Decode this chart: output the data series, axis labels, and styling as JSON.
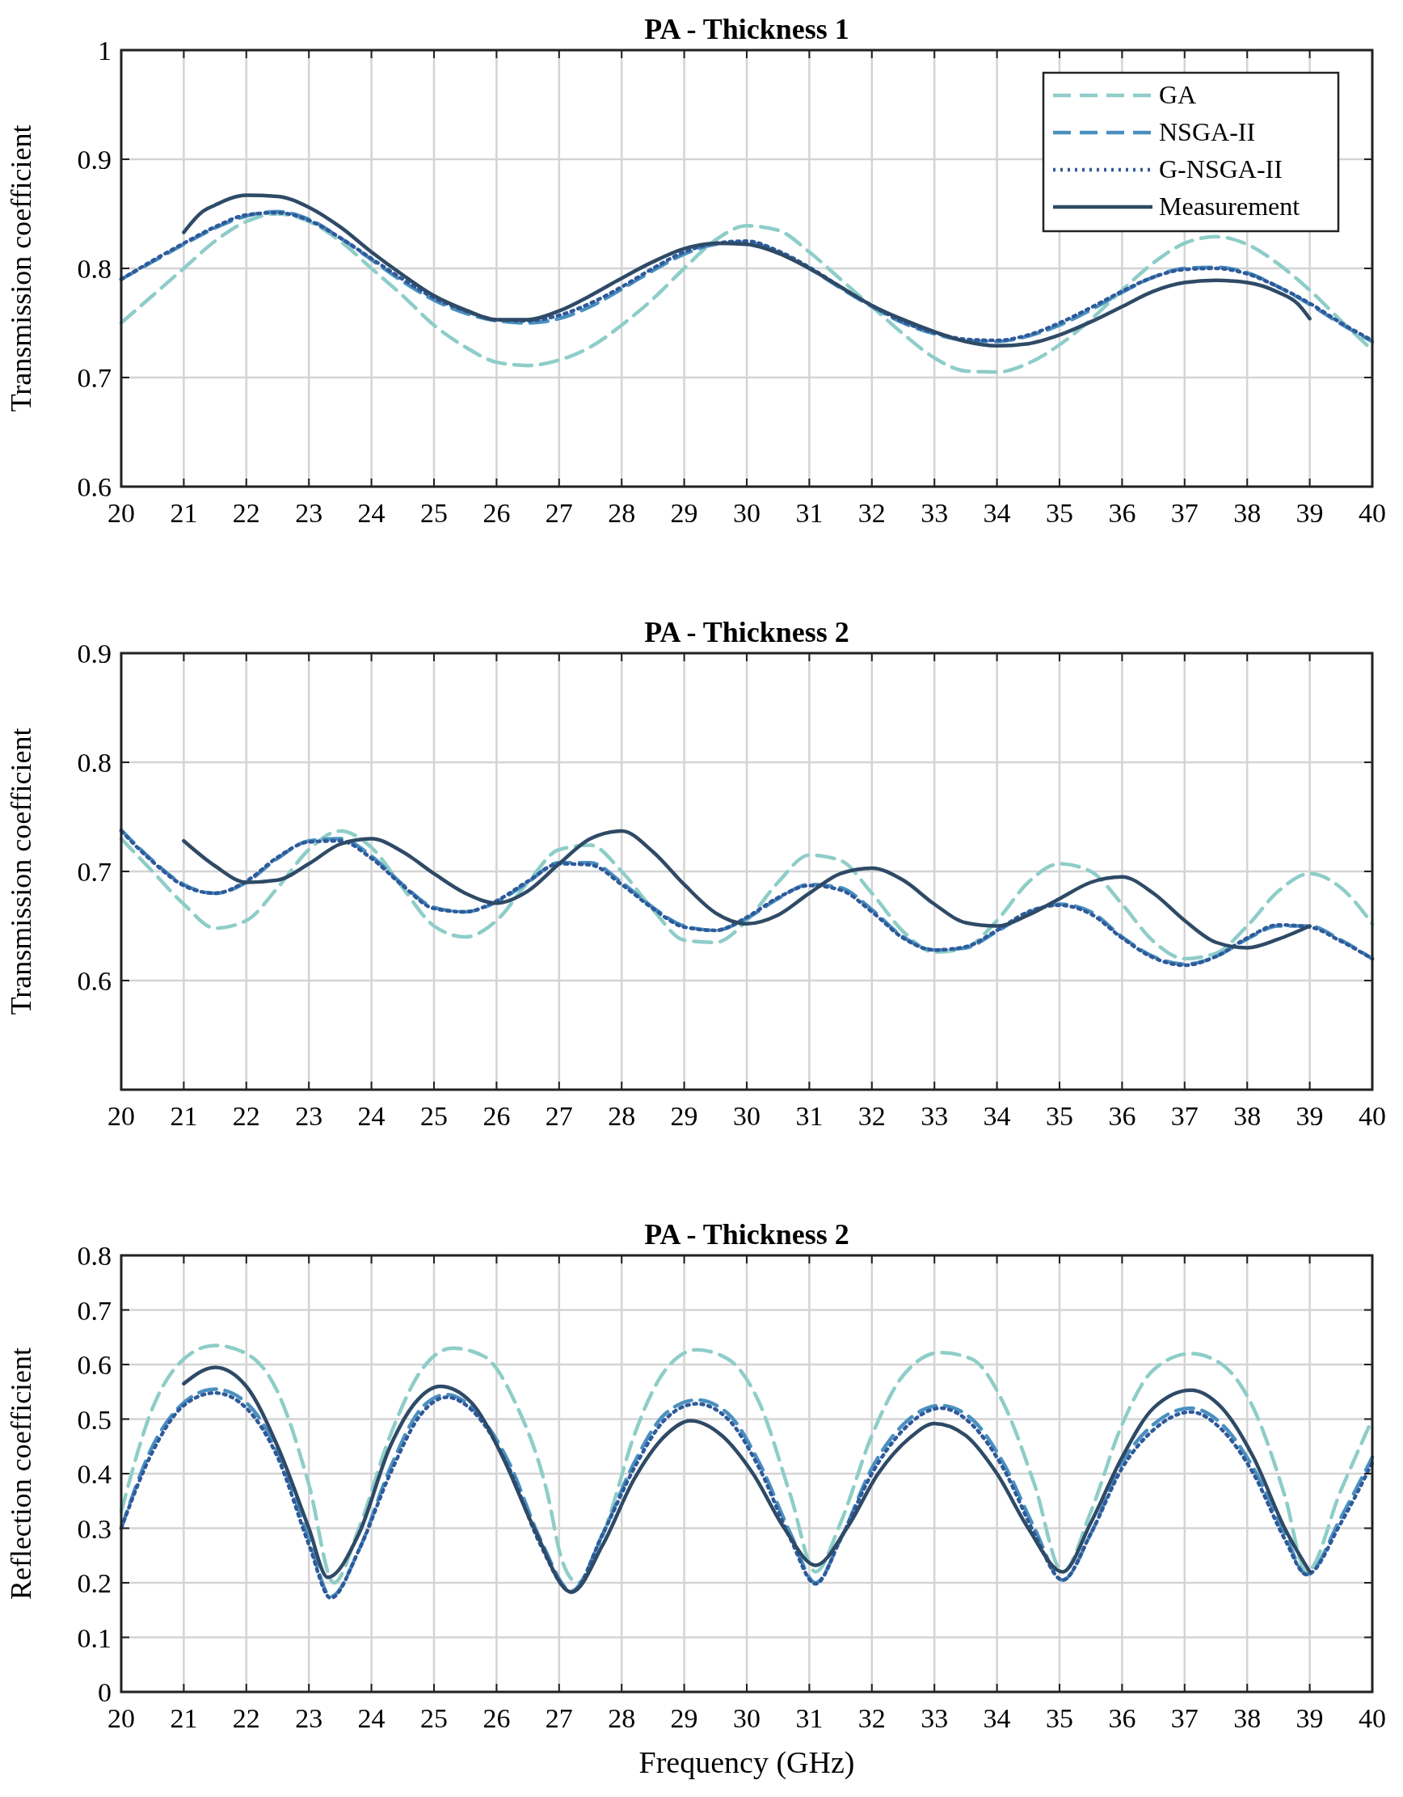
{
  "chart_data": [
    {
      "type": "line",
      "title": "PA - Thickness 1",
      "ylabel": "Transmission coefficient",
      "xlim": [
        20,
        40
      ],
      "xticks": [
        20,
        21,
        22,
        23,
        24,
        25,
        26,
        27,
        28,
        29,
        30,
        31,
        32,
        33,
        34,
        35,
        36,
        37,
        38,
        39,
        40
      ],
      "ylim": [
        0.6,
        1
      ],
      "yticks": [
        0.6,
        0.7,
        0.8,
        0.9,
        1
      ],
      "grid": true,
      "legend": "top right",
      "x": [
        20,
        20.5,
        21,
        21.5,
        22,
        22.5,
        23,
        23.5,
        24,
        24.5,
        25,
        25.5,
        26,
        26.5,
        27,
        27.5,
        28,
        28.5,
        29,
        29.5,
        30,
        30.5,
        31,
        31.5,
        32,
        32.5,
        33,
        33.5,
        34,
        34.5,
        35,
        35.5,
        36,
        36.5,
        37,
        37.5,
        38,
        38.5,
        39,
        39.5,
        40
      ],
      "series": [
        {
          "name": "GA",
          "color": "#8ecdc8",
          "line_style": "dashed",
          "values": [
            0.75,
            0.775,
            0.8,
            0.825,
            0.843,
            0.85,
            0.843,
            0.825,
            0.8,
            0.775,
            0.748,
            0.728,
            0.714,
            0.711,
            0.716,
            0.728,
            0.748,
            0.772,
            0.8,
            0.826,
            0.839,
            0.835,
            0.815,
            0.79,
            0.765,
            0.74,
            0.718,
            0.706,
            0.705,
            0.713,
            0.73,
            0.753,
            0.78,
            0.805,
            0.823,
            0.829,
            0.822,
            0.804,
            0.78,
            0.752,
            0.725
          ]
        },
        {
          "name": "NSGA-II",
          "color": "#4a90c0",
          "line_style": "dashed",
          "values": [
            0.79,
            0.806,
            0.822,
            0.837,
            0.848,
            0.852,
            0.845,
            0.828,
            0.808,
            0.788,
            0.771,
            0.759,
            0.752,
            0.75,
            0.754,
            0.765,
            0.781,
            0.798,
            0.813,
            0.822,
            0.824,
            0.815,
            0.8,
            0.782,
            0.765,
            0.75,
            0.74,
            0.734,
            0.733,
            0.738,
            0.748,
            0.762,
            0.778,
            0.792,
            0.8,
            0.801,
            0.796,
            0.783,
            0.767,
            0.749,
            0.733
          ]
        },
        {
          "name": "G-NSGA-II",
          "color": "#2f5a9a",
          "line_style": "dotted",
          "values": [
            0.79,
            0.807,
            0.823,
            0.838,
            0.849,
            0.851,
            0.844,
            0.828,
            0.809,
            0.79,
            0.773,
            0.761,
            0.753,
            0.752,
            0.757,
            0.768,
            0.783,
            0.8,
            0.815,
            0.823,
            0.825,
            0.816,
            0.801,
            0.783,
            0.766,
            0.751,
            0.741,
            0.735,
            0.734,
            0.739,
            0.75,
            0.764,
            0.779,
            0.792,
            0.799,
            0.8,
            0.795,
            0.783,
            0.768,
            0.75,
            0.734
          ]
        },
        {
          "name": "Measurement",
          "color": "#2e4a66",
          "line_style": "solid",
          "x": [
            21,
            21.3,
            21.5,
            22,
            22.5,
            23,
            23.5,
            24,
            24.5,
            25,
            25.5,
            26,
            26.5,
            27,
            27.5,
            28,
            28.5,
            29,
            29.5,
            30,
            30.5,
            31,
            31.5,
            32,
            32.5,
            33,
            33.5,
            34,
            34.5,
            35,
            35.5,
            36,
            36.5,
            37,
            37.5,
            38,
            38.5,
            38.8,
            39
          ],
          "values": [
            0.833,
            0.852,
            0.858,
            0.867,
            0.866,
            0.856,
            0.838,
            0.815,
            0.794,
            0.775,
            0.762,
            0.753,
            0.753,
            0.761,
            0.775,
            0.791,
            0.806,
            0.818,
            0.823,
            0.822,
            0.814,
            0.8,
            0.783,
            0.766,
            0.753,
            0.742,
            0.733,
            0.729,
            0.731,
            0.739,
            0.751,
            0.765,
            0.779,
            0.787,
            0.789,
            0.787,
            0.778,
            0.768,
            0.754
          ]
        }
      ]
    },
    {
      "type": "line",
      "title": "PA - Thickness 2",
      "ylabel": "Transmission coefficient",
      "xlim": [
        20,
        40
      ],
      "xticks": [
        20,
        21,
        22,
        23,
        24,
        25,
        26,
        27,
        28,
        29,
        30,
        31,
        32,
        33,
        34,
        35,
        36,
        37,
        38,
        39,
        40
      ],
      "ylim": [
        0.5,
        0.9
      ],
      "yticks": [
        0.6,
        0.7,
        0.8,
        0.9
      ],
      "grid": true,
      "x": [
        20,
        20.5,
        21,
        21.5,
        22,
        22.5,
        23,
        23.5,
        24,
        24.5,
        25,
        25.5,
        26,
        26.5,
        27,
        27.5,
        28,
        28.5,
        29,
        29.5,
        30,
        30.5,
        31,
        31.5,
        32,
        32.5,
        33,
        33.5,
        34,
        34.5,
        35,
        35.5,
        36,
        36.5,
        37,
        37.5,
        38,
        38.5,
        39,
        39.5,
        40
      ],
      "series": [
        {
          "color": "#8ecdc8",
          "line_style": "dashed",
          "values": [
            0.73,
            0.7,
            0.67,
            0.648,
            0.655,
            0.685,
            0.72,
            0.737,
            0.722,
            0.685,
            0.65,
            0.64,
            0.655,
            0.69,
            0.72,
            0.724,
            0.7,
            0.665,
            0.637,
            0.635,
            0.655,
            0.69,
            0.715,
            0.71,
            0.68,
            0.645,
            0.626,
            0.63,
            0.655,
            0.69,
            0.707,
            0.7,
            0.67,
            0.636,
            0.62,
            0.625,
            0.65,
            0.682,
            0.698,
            0.685,
            0.652
          ]
        },
        {
          "color": "#4a90c0",
          "line_style": "dashed",
          "values": [
            0.738,
            0.71,
            0.688,
            0.68,
            0.69,
            0.712,
            0.728,
            0.73,
            0.714,
            0.688,
            0.667,
            0.663,
            0.672,
            0.69,
            0.708,
            0.708,
            0.69,
            0.667,
            0.65,
            0.646,
            0.657,
            0.675,
            0.688,
            0.685,
            0.665,
            0.64,
            0.628,
            0.63,
            0.645,
            0.662,
            0.67,
            0.663,
            0.64,
            0.622,
            0.615,
            0.622,
            0.638,
            0.65,
            0.65,
            0.637,
            0.62
          ]
        },
        {
          "color": "#2f5a9a",
          "line_style": "dotted",
          "values": [
            0.737,
            0.709,
            0.687,
            0.68,
            0.691,
            0.713,
            0.727,
            0.728,
            0.712,
            0.687,
            0.666,
            0.663,
            0.673,
            0.691,
            0.707,
            0.706,
            0.688,
            0.666,
            0.649,
            0.646,
            0.658,
            0.676,
            0.687,
            0.683,
            0.663,
            0.639,
            0.628,
            0.631,
            0.646,
            0.663,
            0.669,
            0.661,
            0.639,
            0.621,
            0.614,
            0.622,
            0.639,
            0.651,
            0.649,
            0.636,
            0.62
          ]
        },
        {
          "color": "#2e4a66",
          "line_style": "solid",
          "x": [
            21,
            21.5,
            22,
            22.5,
            23,
            23.5,
            24,
            24.5,
            25,
            25.5,
            26,
            26.5,
            27,
            27.5,
            28,
            28.5,
            29,
            29.5,
            30,
            30.5,
            31,
            31.5,
            32,
            32.5,
            33,
            33.5,
            34,
            34.5,
            35,
            35.5,
            36,
            36.5,
            37,
            37.5,
            38,
            38.5,
            39
          ],
          "values": [
            0.728,
            0.705,
            0.69,
            0.692,
            0.707,
            0.725,
            0.73,
            0.718,
            0.698,
            0.68,
            0.671,
            0.682,
            0.707,
            0.73,
            0.737,
            0.718,
            0.688,
            0.662,
            0.652,
            0.66,
            0.68,
            0.698,
            0.703,
            0.692,
            0.67,
            0.653,
            0.65,
            0.66,
            0.675,
            0.69,
            0.695,
            0.68,
            0.655,
            0.635,
            0.63,
            0.638,
            0.65
          ]
        }
      ]
    },
    {
      "type": "line",
      "title": "PA - Thickness 2",
      "ylabel": "Reflection coefficient",
      "xlabel": "Frequency (GHz)",
      "xlim": [
        20,
        40
      ],
      "xticks": [
        20,
        21,
        22,
        23,
        24,
        25,
        26,
        27,
        28,
        29,
        30,
        31,
        32,
        33,
        34,
        35,
        36,
        37,
        38,
        39,
        40
      ],
      "ylim": [
        0,
        0.8
      ],
      "yticks": [
        0,
        0.1,
        0.2,
        0.3,
        0.4,
        0.5,
        0.6,
        0.7,
        0.8
      ],
      "grid": true,
      "series": [
        {
          "color": "#8ecdc8",
          "line_style": "dashed",
          "x": [
            20,
            20.5,
            21,
            21.5,
            22,
            22.5,
            23,
            23.4,
            23.8,
            24.3,
            24.8,
            25.3,
            25.8,
            26.3,
            26.8,
            27.05,
            27.3,
            27.55,
            27.8,
            28.2,
            28.7,
            29.2,
            29.7,
            30.2,
            30.7,
            31.1,
            31.5,
            32,
            32.5,
            33.1,
            33.6,
            34.1,
            34.6,
            35.05,
            35.5,
            36,
            36.5,
            37.1,
            37.6,
            38.1,
            38.6,
            38.95,
            39.5,
            40
          ],
          "values": [
            0.33,
            0.52,
            0.61,
            0.635,
            0.62,
            0.55,
            0.38,
            0.2,
            0.3,
            0.47,
            0.59,
            0.63,
            0.615,
            0.53,
            0.37,
            0.24,
            0.2,
            0.24,
            0.32,
            0.47,
            0.59,
            0.627,
            0.61,
            0.53,
            0.36,
            0.22,
            0.31,
            0.47,
            0.58,
            0.622,
            0.61,
            0.53,
            0.38,
            0.22,
            0.33,
            0.49,
            0.59,
            0.62,
            0.6,
            0.52,
            0.36,
            0.22,
            0.37,
            0.5
          ]
        },
        {
          "color": "#4a90c0",
          "line_style": "dashed",
          "x": [
            20,
            20.5,
            21,
            21.5,
            22,
            22.5,
            23,
            23.35,
            23.8,
            24.3,
            24.8,
            25.2,
            25.7,
            26.2,
            26.7,
            27.2,
            27.7,
            28.2,
            28.7,
            29.2,
            29.7,
            30.2,
            30.7,
            31.1,
            31.5,
            32,
            32.5,
            33.1,
            33.6,
            34.1,
            34.6,
            35.05,
            35.5,
            36,
            36.5,
            37.1,
            37.6,
            38.1,
            38.6,
            38.95,
            39.5,
            40
          ],
          "values": [
            0.3,
            0.45,
            0.53,
            0.555,
            0.53,
            0.44,
            0.28,
            0.175,
            0.26,
            0.41,
            0.52,
            0.545,
            0.51,
            0.42,
            0.28,
            0.185,
            0.29,
            0.42,
            0.51,
            0.535,
            0.51,
            0.42,
            0.29,
            0.2,
            0.28,
            0.41,
            0.49,
            0.525,
            0.5,
            0.42,
            0.3,
            0.205,
            0.29,
            0.42,
            0.49,
            0.52,
            0.49,
            0.41,
            0.29,
            0.215,
            0.32,
            0.43
          ]
        },
        {
          "color": "#2f5a9a",
          "line_style": "dotted",
          "x": [
            20,
            20.5,
            21,
            21.5,
            22,
            22.5,
            23,
            23.35,
            23.8,
            24.3,
            24.8,
            25.2,
            25.7,
            26.2,
            26.7,
            27.2,
            27.7,
            28.2,
            28.7,
            29.2,
            29.7,
            30.2,
            30.7,
            31.1,
            31.5,
            32,
            32.5,
            33.1,
            33.6,
            34.1,
            34.6,
            35.05,
            35.5,
            36,
            36.5,
            37.1,
            37.6,
            38.1,
            38.6,
            38.95,
            39.5,
            40
          ],
          "values": [
            0.3,
            0.44,
            0.525,
            0.548,
            0.52,
            0.43,
            0.27,
            0.172,
            0.26,
            0.4,
            0.51,
            0.54,
            0.505,
            0.41,
            0.27,
            0.183,
            0.29,
            0.41,
            0.5,
            0.528,
            0.5,
            0.41,
            0.28,
            0.198,
            0.28,
            0.4,
            0.48,
            0.52,
            0.49,
            0.41,
            0.29,
            0.205,
            0.29,
            0.41,
            0.48,
            0.513,
            0.48,
            0.4,
            0.28,
            0.215,
            0.31,
            0.42
          ]
        },
        {
          "color": "#2e4a66",
          "line_style": "solid",
          "x": [
            21,
            21.5,
            22,
            22.5,
            23,
            23.3,
            23.8,
            24.3,
            24.7,
            25.1,
            25.6,
            26.1,
            26.6,
            27.2,
            27.7,
            28.2,
            28.7,
            29.1,
            29.6,
            30.1,
            30.6,
            31.1,
            31.6,
            32.1,
            32.6,
            33,
            33.5,
            34,
            34.5,
            35.05,
            35.5,
            36,
            36.5,
            37.1,
            37.6,
            38.1,
            38.6,
            39
          ],
          "values": [
            0.565,
            0.595,
            0.56,
            0.45,
            0.3,
            0.21,
            0.29,
            0.45,
            0.53,
            0.56,
            0.53,
            0.43,
            0.3,
            0.183,
            0.27,
            0.39,
            0.47,
            0.497,
            0.47,
            0.4,
            0.3,
            0.232,
            0.3,
            0.4,
            0.465,
            0.492,
            0.47,
            0.4,
            0.3,
            0.22,
            0.31,
            0.43,
            0.52,
            0.553,
            0.52,
            0.43,
            0.3,
            0.22
          ]
        }
      ]
    }
  ]
}
